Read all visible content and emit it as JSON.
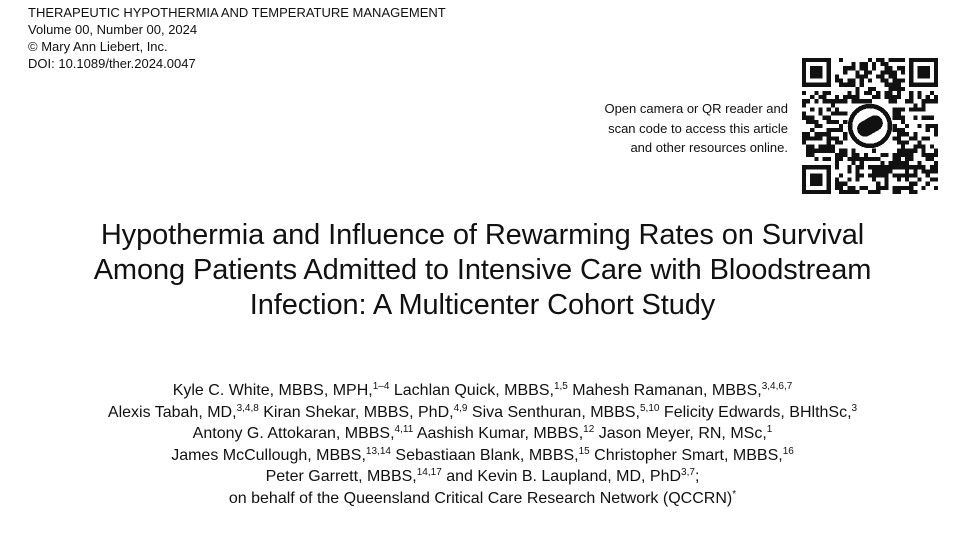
{
  "journal": {
    "name": "THERAPEUTIC HYPOTHERMIA AND TEMPERATURE MANAGEMENT",
    "volume": "Volume 00, Number 00, 2024",
    "copyright": "© Mary Ann Liebert, Inc.",
    "doi": "DOI: 10.1089/ther.2024.0047"
  },
  "qr_note": {
    "line1": "Open camera or QR reader and",
    "line2": "scan code to access this article",
    "line3": "and other resources online."
  },
  "title": {
    "line1": "Hypothermia and Influence of Rewarming Rates on Survival",
    "line2": "Among Patients Admitted to Intensive Care with Bloodstream",
    "line3": "Infection: A Multicenter Cohort Study"
  },
  "authors": {
    "lines": [
      [
        {
          "name": "Kyle C. White, MBBS, MPH,",
          "sup": "1–4"
        },
        {
          "name": " Lachlan Quick, MBBS,",
          "sup": "1,5"
        },
        {
          "name": " Mahesh Ramanan, MBBS,",
          "sup": "3,4,6,7"
        }
      ],
      [
        {
          "name": "Alexis Tabah, MD,",
          "sup": "3,4,8"
        },
        {
          "name": " Kiran Shekar, MBBS, PhD,",
          "sup": "4,9"
        },
        {
          "name": " Siva Senthuran, MBBS,",
          "sup": "5,10"
        },
        {
          "name": " Felicity Edwards, BHlthSc,",
          "sup": "3"
        }
      ],
      [
        {
          "name": "Antony G. Attokaran, MBBS,",
          "sup": "4,11"
        },
        {
          "name": " Aashish Kumar, MBBS,",
          "sup": "12"
        },
        {
          "name": " Jason Meyer, RN, MSc,",
          "sup": "1"
        }
      ],
      [
        {
          "name": "James McCullough, MBBS,",
          "sup": "13,14"
        },
        {
          "name": " Sebastiaan Blank, MBBS,",
          "sup": "15"
        },
        {
          "name": " Christopher Smart, MBBS,",
          "sup": "16"
        }
      ],
      [
        {
          "name": "Peter Garrett, MBBS,",
          "sup": "14,17"
        },
        {
          "name": " and Kevin B. Laupland, MD, PhD",
          "sup": "3,7"
        },
        {
          "name": ";",
          "sup": ""
        }
      ],
      [
        {
          "name": "on behalf of the Queensland Critical Care Research Network (QCCRN)",
          "sup": "*"
        }
      ]
    ]
  }
}
